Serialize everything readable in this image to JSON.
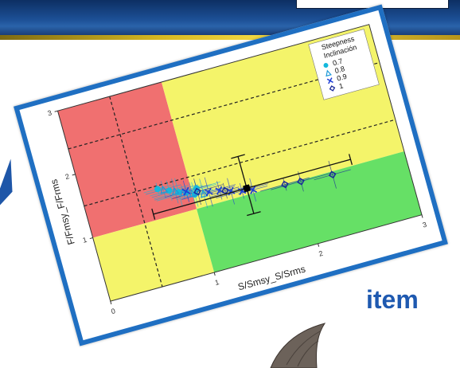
{
  "slide": {
    "item_text": "item",
    "colors": {
      "banner": "#1c4f95",
      "stripe": "#d8b821",
      "frame": "#1f6fc2",
      "item_text": "#1e59b0"
    }
  },
  "chart_data": {
    "type": "scatter",
    "xlabel": "S/Smsy_S/Srms",
    "ylabel": "F/Fmsy_F/Frms",
    "xlim": [
      0,
      3
    ],
    "ylim": [
      0,
      3
    ],
    "x_ticks": [
      "0",
      "1",
      "2",
      "3"
    ],
    "y_ticks": [
      "1",
      "2",
      "3"
    ],
    "grid": false,
    "legend_position": "top-right",
    "legend": {
      "title_line1": "Steepness",
      "title_line2": "Inclinación"
    },
    "zones": [
      {
        "name": "overfished-overfishing",
        "x": [
          0,
          1
        ],
        "y": [
          1,
          3
        ],
        "color": "#f07070"
      },
      {
        "name": "overfishing",
        "x": [
          1,
          3
        ],
        "y": [
          1,
          3
        ],
        "color": "#f4f46a"
      },
      {
        "name": "overfished",
        "x": [
          0,
          1
        ],
        "y": [
          0,
          1
        ],
        "color": "#f4f46a"
      },
      {
        "name": "healthy",
        "x": [
          1,
          3
        ],
        "y": [
          0,
          1
        ],
        "color": "#66e066"
      }
    ],
    "reference_lines": [
      {
        "orientation": "vertical",
        "value": 0.5,
        "style": "dashed"
      },
      {
        "orientation": "horizontal",
        "value": 1.5,
        "style": "dashed"
      },
      {
        "orientation": "horizontal",
        "value": 2.4,
        "style": "dashed"
      }
    ],
    "series": [
      {
        "name": "0.7",
        "marker": "circle",
        "color": "#14b8dc",
        "points": [
          [
            0.7,
            1.45
          ],
          [
            0.8,
            1.38
          ],
          [
            0.88,
            1.32
          ],
          [
            0.95,
            1.28
          ],
          [
            1.02,
            1.22
          ],
          [
            1.05,
            1.3
          ]
        ]
      },
      {
        "name": "0.8",
        "marker": "triangle",
        "color": "#1e9ad8",
        "points": [
          [
            0.75,
            1.42
          ],
          [
            0.85,
            1.35
          ],
          [
            0.92,
            1.3
          ],
          [
            1.0,
            1.25
          ],
          [
            1.1,
            1.2
          ]
        ]
      },
      {
        "name": "0.9",
        "marker": "x",
        "color": "#1f3fd6",
        "points": [
          [
            0.95,
            1.3
          ],
          [
            1.15,
            1.2
          ],
          [
            1.25,
            1.18
          ],
          [
            1.35,
            1.12
          ],
          [
            1.45,
            1.08
          ],
          [
            1.55,
            1.05
          ]
        ]
      },
      {
        "name": "1",
        "marker": "diamond",
        "color": "#1a2a9a",
        "points": [
          [
            1.05,
            1.25
          ],
          [
            1.3,
            1.15
          ],
          [
            1.5,
            1.1
          ],
          [
            1.85,
            1.0
          ],
          [
            2.0,
            0.98
          ],
          [
            2.3,
            0.95
          ]
        ]
      }
    ],
    "combined_estimate": {
      "x": 1.5,
      "y": 1.1,
      "x_range": [
        0.6,
        2.5
      ],
      "y_range": [
        0.7,
        1.6
      ]
    }
  }
}
